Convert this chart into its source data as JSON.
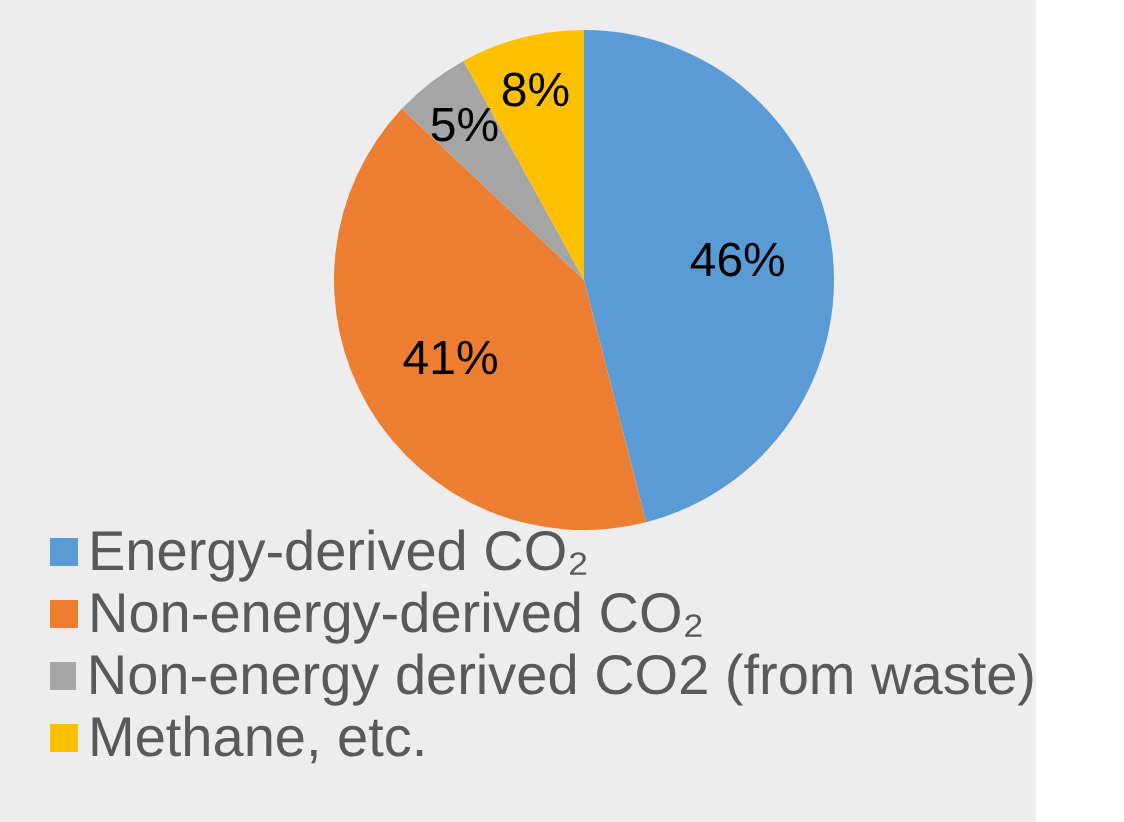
{
  "chart_data": {
    "type": "pie",
    "categories": [
      "Energy-derived CO₂",
      "Non-energy-derived CO₂",
      "Non-energy derived CO2 (from waste)",
      "Methane, etc."
    ],
    "values": [
      46,
      41,
      5,
      8
    ],
    "colors": [
      "#5b9bd5",
      "#ed7d31",
      "#a5a5a5",
      "#ffc000"
    ],
    "value_labels": [
      "46%",
      "41%",
      "5%",
      "8%"
    ],
    "legend": "bottom"
  }
}
